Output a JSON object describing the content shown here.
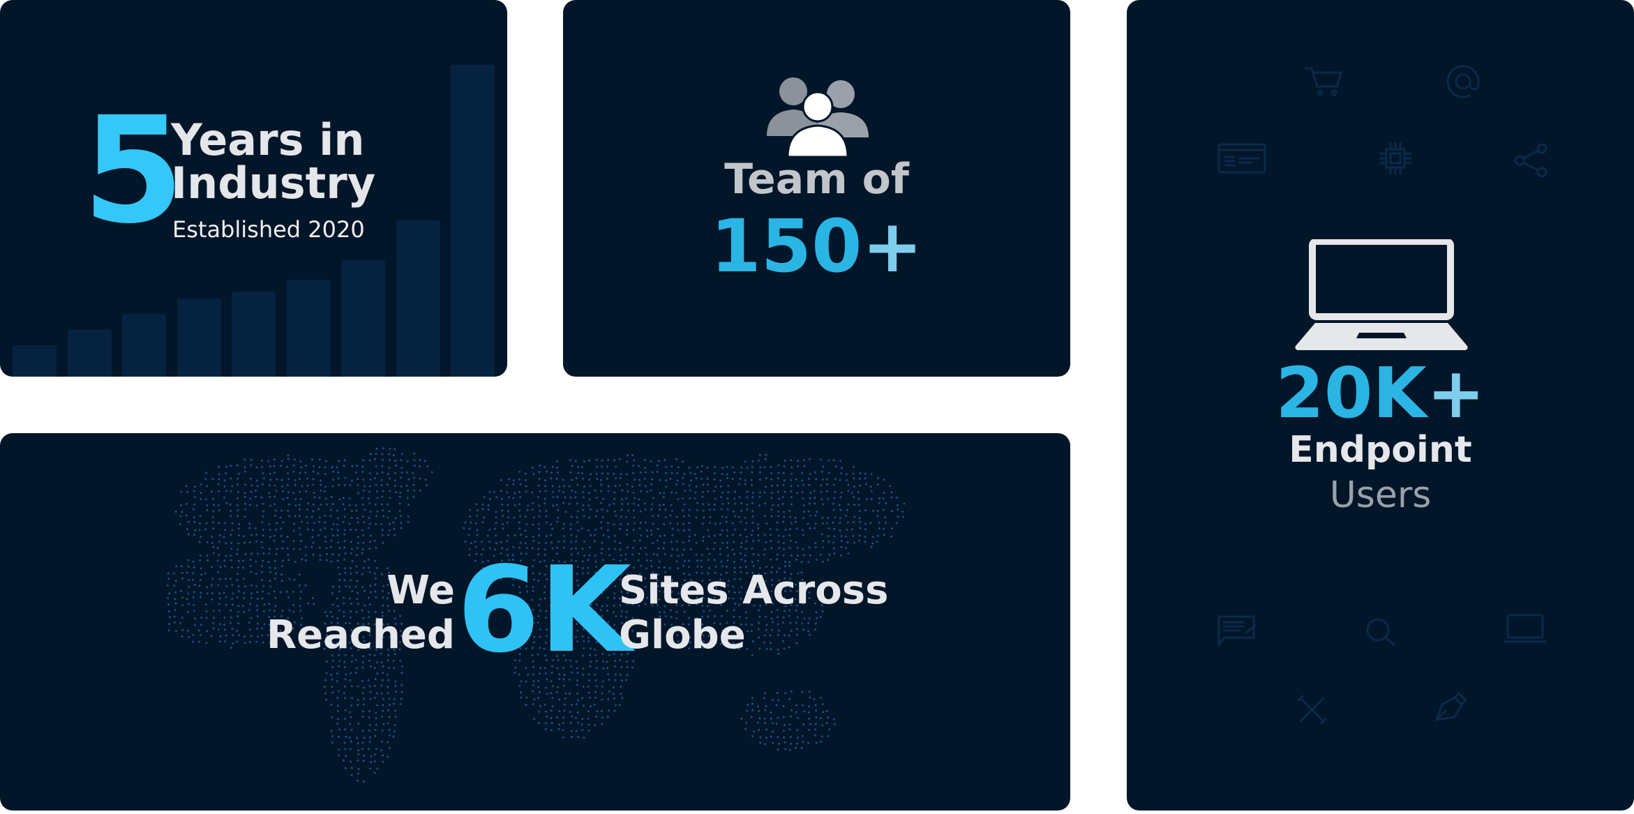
{
  "years_card": {
    "number": "5",
    "line1": "Years in",
    "line2": "Industry",
    "subtitle": "Established 2020",
    "background_bars": [
      30,
      45,
      60,
      75,
      82,
      93,
      112,
      150,
      299
    ]
  },
  "team_card": {
    "icon": "people-group-icon",
    "label": "Team of",
    "number": "150",
    "plus": "+"
  },
  "endpoint_card": {
    "icon": "laptop-icon",
    "number": "20K",
    "plus": "+",
    "line1": "Endpoint",
    "line2": "Users",
    "background_icons": [
      "cart-icon",
      "at-icon",
      "card-icon",
      "chip-icon",
      "share-icon",
      "chat-edit-icon",
      "search-icon",
      "laptop-icon",
      "tools-icon",
      "pen-icon"
    ]
  },
  "globe_card": {
    "left_line1": "We",
    "left_line2": "Reached",
    "number": "6K",
    "right_line1": "Sites Across",
    "right_line2": "Globe"
  },
  "colors": {
    "card_bg": "#021629",
    "accent": "#2fc3f5",
    "bar": "#052340",
    "text": "#e6e7ea",
    "muted": "#9aa1aa"
  }
}
